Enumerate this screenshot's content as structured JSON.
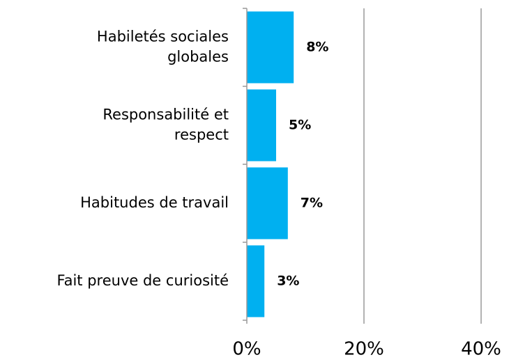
{
  "chart_data": {
    "type": "bar",
    "orientation": "horizontal",
    "categories": [
      "Habiletés sociales\nglobales",
      "Responsabilité et\nrespect",
      "Habitudes de travail",
      "Fait preuve de curiosité"
    ],
    "values": [
      8,
      5,
      7,
      3
    ],
    "value_labels": [
      "8%",
      "5%",
      "7%",
      "3%"
    ],
    "color": "#00b0f0",
    "xlim": [
      0,
      40
    ],
    "xticks": [
      {
        "value": 0,
        "label": "0%"
      },
      {
        "value": 20,
        "label": "20%"
      },
      {
        "value": 40,
        "label": "40%"
      }
    ],
    "grid": true
  }
}
